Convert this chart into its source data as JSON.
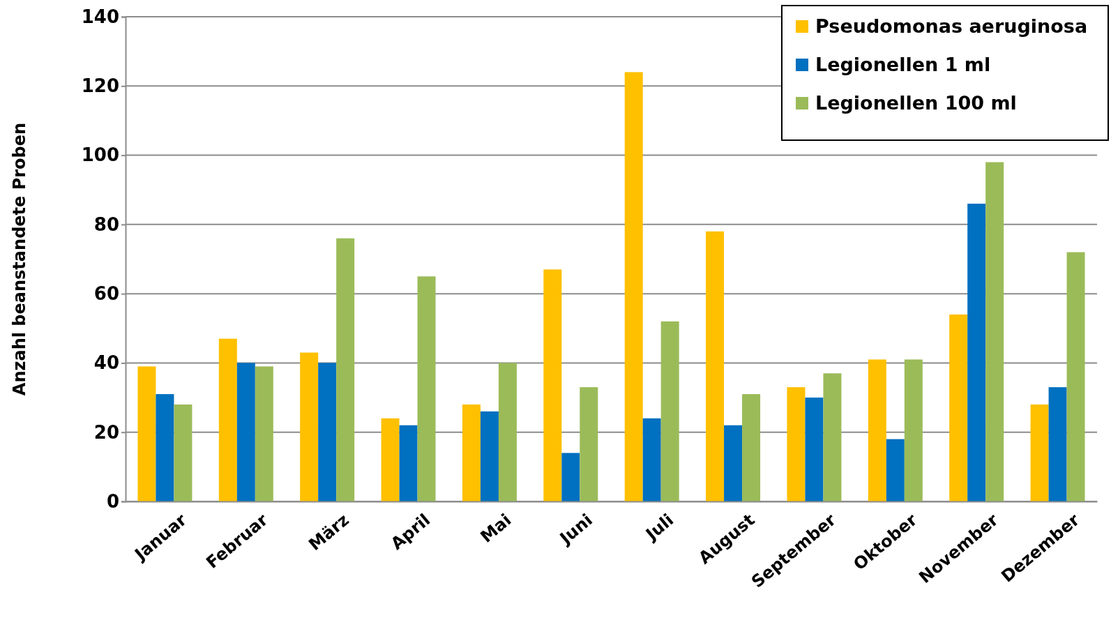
{
  "chart_data": {
    "type": "bar",
    "ylabel": "Anzahl beanstandete Proben",
    "categories": [
      "Januar",
      "Februar",
      "März",
      "April",
      "Mai",
      "Juni",
      "Juli",
      "August",
      "September",
      "Oktober",
      "November",
      "Dezember"
    ],
    "series": [
      {
        "name": "Pseudomonas aeruginosa",
        "color": "#ffc000",
        "values": [
          39,
          47,
          43,
          24,
          28,
          67,
          124,
          78,
          33,
          41,
          54,
          28
        ]
      },
      {
        "name": "Legionellen 1 ml",
        "color": "#0070c0",
        "values": [
          31,
          40,
          40,
          22,
          26,
          14,
          24,
          22,
          30,
          18,
          86,
          33
        ]
      },
      {
        "name": "Legionellen 100 ml",
        "color": "#9bbb59",
        "values": [
          28,
          39,
          76,
          65,
          40,
          33,
          52,
          31,
          37,
          41,
          98,
          72
        ]
      }
    ],
    "ylim": [
      0,
      140
    ],
    "yticks": [
      0,
      20,
      40,
      60,
      80,
      100,
      120,
      140
    ],
    "grid": "y",
    "legend": "top right"
  }
}
